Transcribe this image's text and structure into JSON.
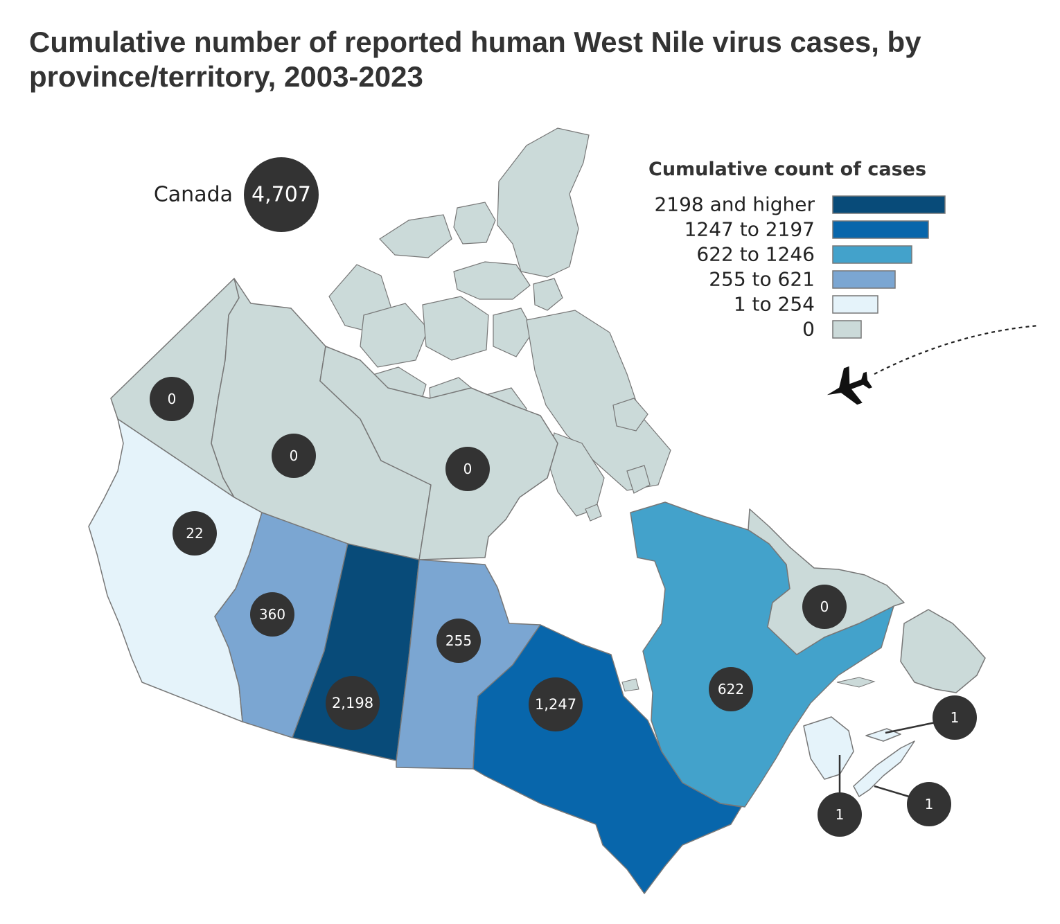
{
  "title": "Cumulative number of reported human West Nile virus cases, by province/territory, 2003-2023",
  "canada": {
    "label": "Canada",
    "value": "4,707"
  },
  "legend": {
    "title": "Cumulative count of cases",
    "items": [
      {
        "label": "2198 and higher",
        "color": "#084b79"
      },
      {
        "label": "1247 to 2197",
        "color": "#0866ab"
      },
      {
        "label": "622 to 1246",
        "color": "#43a2cb"
      },
      {
        "label": "255 to 621",
        "color": "#7ba6d2"
      },
      {
        "label": "1 to 254",
        "color": "#e5f3fa"
      },
      {
        "label": "0",
        "color": "#cbdad9"
      }
    ]
  },
  "regions": [
    {
      "id": "yukon",
      "value": "0",
      "color": "#cbdad9"
    },
    {
      "id": "northwest-territories",
      "value": "0",
      "color": "#cbdad9"
    },
    {
      "id": "nunavut",
      "value": "0",
      "color": "#cbdad9"
    },
    {
      "id": "british-columbia",
      "value": "22",
      "color": "#e5f3fa"
    },
    {
      "id": "alberta",
      "value": "360",
      "color": "#7ba6d2"
    },
    {
      "id": "saskatchewan",
      "value": "2,198",
      "color": "#084b79"
    },
    {
      "id": "manitoba",
      "value": "255",
      "color": "#7ba6d2"
    },
    {
      "id": "ontario",
      "value": "1,247",
      "color": "#0866ab"
    },
    {
      "id": "quebec",
      "value": "622",
      "color": "#43a2cb"
    },
    {
      "id": "newfoundland-and-labrador",
      "value": "0",
      "color": "#cbdad9"
    },
    {
      "id": "prince-edward-island",
      "value": "1",
      "color": "#e5f3fa"
    },
    {
      "id": "nova-scotia",
      "value": "1",
      "color": "#e5f3fa"
    },
    {
      "id": "new-brunswick",
      "value": "1",
      "color": "#e5f3fa"
    }
  ],
  "icons": {
    "travel": "airplane-icon"
  }
}
